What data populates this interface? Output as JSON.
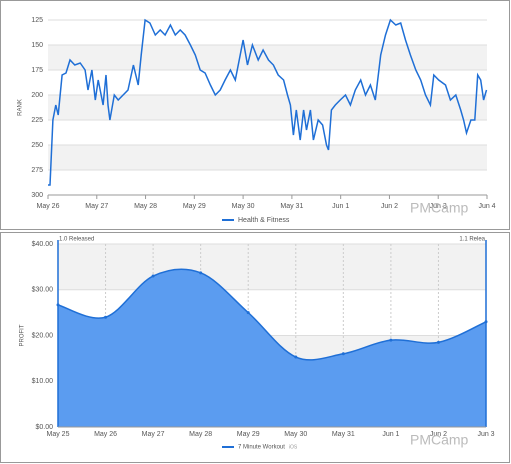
{
  "chart_data": [
    {
      "type": "line",
      "y_label": "RANK",
      "inverted_y": true,
      "alternate_bands": true,
      "watermark": "PMCamp",
      "ylim": [
        125,
        300
      ],
      "yticks": [
        125,
        150,
        175,
        200,
        225,
        250,
        275,
        300
      ],
      "xlim": [
        0,
        9
      ],
      "xticks": [
        {
          "value": 0,
          "label": "May 26"
        },
        {
          "value": 1,
          "label": "May 27"
        },
        {
          "value": 2,
          "label": "May 28"
        },
        {
          "value": 3,
          "label": "May 29"
        },
        {
          "value": 4,
          "label": "May 30"
        },
        {
          "value": 5,
          "label": "May 31"
        },
        {
          "value": 6,
          "label": "Jun 1"
        },
        {
          "value": 7,
          "label": "Jun 2"
        },
        {
          "value": 8,
          "label": "Jun 3"
        },
        {
          "value": 9,
          "label": "Jun 4"
        }
      ],
      "x": [
        0,
        0.04,
        0.1,
        0.16,
        0.21,
        0.29,
        0.37,
        0.45,
        0.55,
        0.66,
        0.76,
        0.82,
        0.9,
        0.97,
        1.03,
        1.13,
        1.19,
        1.23,
        1.27,
        1.36,
        1.44,
        1.54,
        1.64,
        1.75,
        1.85,
        1.91,
        1.99,
        2.09,
        2.2,
        2.3,
        2.4,
        2.51,
        2.61,
        2.71,
        2.81,
        2.92,
        3.02,
        3.12,
        3.22,
        3.33,
        3.43,
        3.53,
        3.63,
        3.74,
        3.84,
        3.94,
        4.0,
        4.09,
        4.19,
        4.31,
        4.41,
        4.52,
        4.62,
        4.72,
        4.83,
        4.91,
        4.97,
        5.03,
        5.09,
        5.17,
        5.24,
        5.3,
        5.38,
        5.44,
        5.54,
        5.63,
        5.71,
        5.75,
        5.81,
        5.89,
        5.99,
        6.1,
        6.2,
        6.3,
        6.41,
        6.51,
        6.61,
        6.71,
        6.82,
        6.92,
        7.02,
        7.13,
        7.23,
        7.33,
        7.43,
        7.54,
        7.64,
        7.74,
        7.84,
        7.91,
        8.01,
        8.15,
        8.25,
        8.36,
        8.46,
        8.52,
        8.58,
        8.67,
        8.75,
        8.81,
        8.87,
        8.93,
        8.99
      ],
      "series": [
        {
          "name": "Health & Fitness",
          "color": "#1f6fd6",
          "values": [
            290,
            290,
            225,
            210,
            220,
            180,
            178,
            165,
            170,
            168,
            175,
            195,
            175,
            205,
            185,
            210,
            180,
            210,
            225,
            200,
            205,
            200,
            195,
            170,
            190,
            160,
            125,
            128,
            140,
            135,
            140,
            130,
            140,
            135,
            140,
            150,
            160,
            175,
            178,
            190,
            200,
            195,
            185,
            175,
            185,
            160,
            145,
            170,
            150,
            165,
            155,
            165,
            170,
            180,
            185,
            200,
            210,
            240,
            215,
            245,
            215,
            235,
            215,
            245,
            225,
            230,
            250,
            255,
            215,
            210,
            205,
            200,
            210,
            195,
            185,
            200,
            190,
            205,
            160,
            140,
            125,
            130,
            128,
            145,
            160,
            175,
            185,
            200,
            210,
            180,
            185,
            190,
            205,
            200,
            215,
            225,
            238,
            225,
            225,
            180,
            185,
            205,
            195
          ]
        }
      ]
    },
    {
      "type": "area",
      "y_label": "PROFIT",
      "alternate_bands": true,
      "watermark": "PMCamp",
      "ylim": [
        0,
        40
      ],
      "yticks": [
        {
          "value": 0,
          "label": "$0.00"
        },
        {
          "value": 10,
          "label": "$10.00"
        },
        {
          "value": 20,
          "label": "$20.00"
        },
        {
          "value": 30,
          "label": "$30.00"
        },
        {
          "value": 40,
          "label": "$40.00"
        }
      ],
      "categories": [
        "May 25",
        "May 26",
        "May 27",
        "May 28",
        "May 29",
        "May 30",
        "May 31",
        "Jun 1",
        "Jun 2",
        "Jun 3"
      ],
      "annotations": [
        {
          "category": 0,
          "text": "1.0 Released"
        },
        {
          "category": 9,
          "text": "1.1 Relea"
        }
      ],
      "legend_note": "iOS",
      "series": [
        {
          "name": "7 Minute Workout",
          "color": "#1f6fd6",
          "fill": "#5b9cf0",
          "values": [
            26.7,
            24,
            33,
            33.7,
            25,
            15.3,
            16,
            19,
            18.5,
            23
          ]
        }
      ]
    }
  ]
}
